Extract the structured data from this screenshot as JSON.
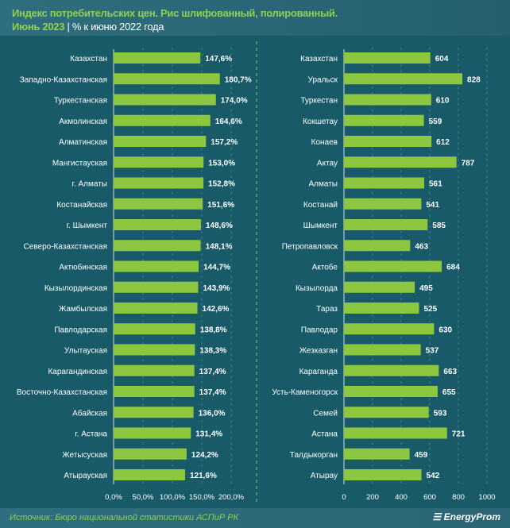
{
  "header": {
    "title": "Индекс потребительских цен. Рис шлифованный, полированный.",
    "period": "Июнь 2023",
    "separator": "|",
    "subtitle": "% к июню 2022 года"
  },
  "footer": {
    "source": "Источник: Бюро национальной статистики АСПиР РК",
    "logo": "EnergyProm"
  },
  "colors": {
    "bar": "#8dc63f",
    "background": "#185a68",
    "accent": "#8fd052"
  },
  "chart_data": [
    {
      "type": "bar",
      "orientation": "horizontal",
      "xlim": [
        0,
        200
      ],
      "ticks": [
        "0,0%",
        "50,0%",
        "100,0%",
        "150,0%",
        "200,0%"
      ],
      "tick_values": [
        0,
        50,
        100,
        150,
        200
      ],
      "categories": [
        "Казахстан",
        "Западно-Казахстанская",
        "Туркестанская",
        "Акмолинская",
        "Алматинская",
        "Мангистауская",
        "г. Алматы",
        "Костанайская",
        "г. Шымкент",
        "Северо-Казахстанская",
        "Актюбинская",
        "Кызылординская",
        "Жамбылская",
        "Павлодарская",
        "Улытауская",
        "Карагандинская",
        "Восточно-Казахстанская",
        "Абайская",
        "г. Астана",
        "Жетысуская",
        "Атырауская"
      ],
      "values": [
        147.6,
        180.7,
        174.0,
        164.6,
        157.2,
        153.0,
        152.8,
        151.6,
        148.6,
        148.1,
        144.7,
        143.9,
        142.6,
        138.8,
        138.3,
        137.4,
        137.4,
        136.0,
        131.4,
        124.2,
        121.6
      ],
      "labels": [
        "147,6%",
        "180,7%",
        "174,0%",
        "164,6%",
        "157,2%",
        "153,0%",
        "152,8%",
        "151,6%",
        "148,6%",
        "148,1%",
        "144,7%",
        "143,9%",
        "142,6%",
        "138,8%",
        "138,3%",
        "137,4%",
        "137,4%",
        "136,0%",
        "131,4%",
        "124,2%",
        "121,6%"
      ]
    },
    {
      "type": "bar",
      "orientation": "horizontal",
      "xlim": [
        0,
        1000
      ],
      "ticks": [
        "0",
        "200",
        "400",
        "600",
        "800",
        "1000"
      ],
      "tick_values": [
        0,
        200,
        400,
        600,
        800,
        1000
      ],
      "categories": [
        "Казахстан",
        "Уральск",
        "Туркестан",
        "Кокшетау",
        "Конаев",
        "Актау",
        "Алматы",
        "Костанай",
        "Шымкент",
        "Петропавловск",
        "Актобе",
        "Кызылорда",
        "Тараз",
        "Павлодар",
        "Жезказган",
        "Караганда",
        "Усть-Каменогорск",
        "Семей",
        "Астана",
        "Талдыкорган",
        "Атырау"
      ],
      "values": [
        604,
        828,
        610,
        559,
        612,
        787,
        561,
        541,
        585,
        463,
        684,
        495,
        525,
        630,
        537,
        663,
        655,
        593,
        721,
        459,
        542
      ],
      "labels": [
        "604",
        "828",
        "610",
        "559",
        "612",
        "787",
        "561",
        "541",
        "585",
        "463",
        "684",
        "495",
        "525",
        "630",
        "537",
        "663",
        "655",
        "593",
        "721",
        "459",
        "542"
      ]
    }
  ]
}
